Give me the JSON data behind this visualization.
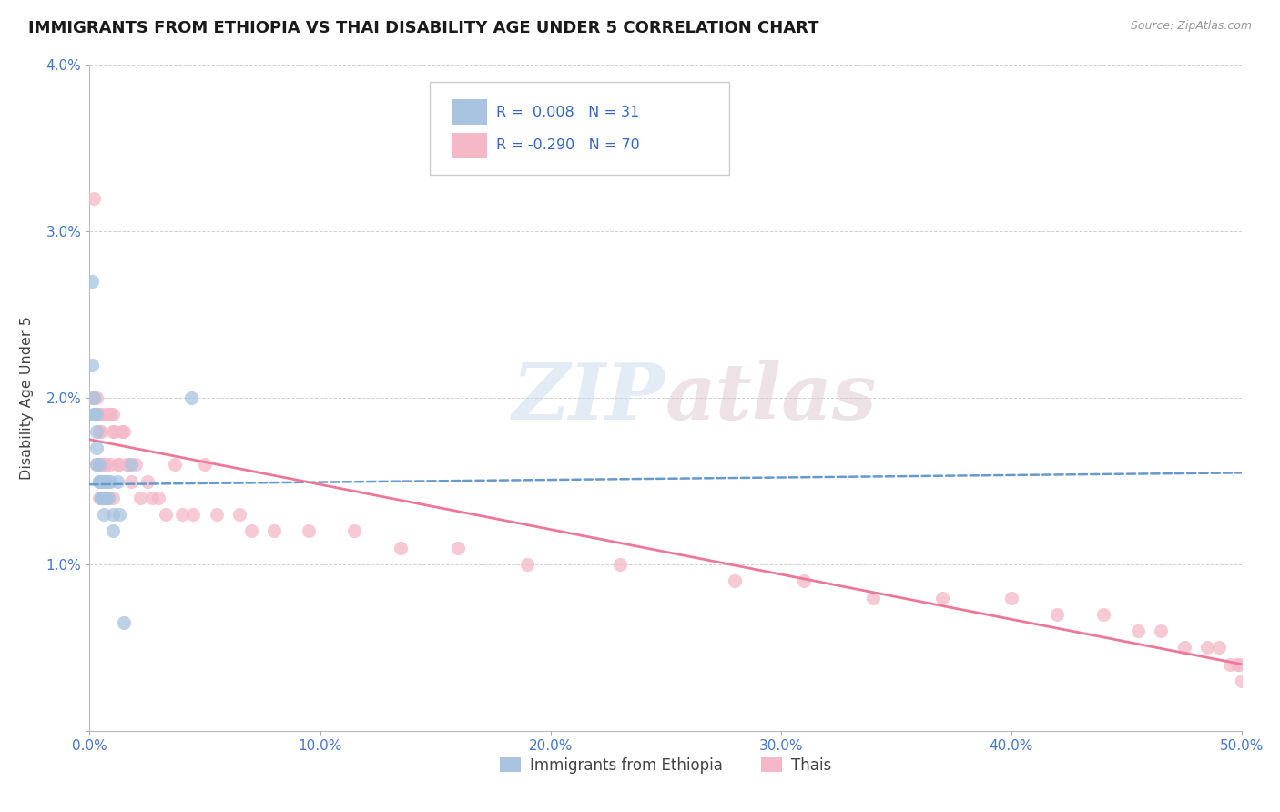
{
  "title": "IMMIGRANTS FROM ETHIOPIA VS THAI DISABILITY AGE UNDER 5 CORRELATION CHART",
  "source_text": "Source: ZipAtlas.com",
  "ylabel": "Disability Age Under 5",
  "xlim": [
    0.0,
    0.5
  ],
  "ylim": [
    0.0,
    0.04
  ],
  "xticks": [
    0.0,
    0.1,
    0.2,
    0.3,
    0.4,
    0.5
  ],
  "xtick_labels": [
    "0.0%",
    "10.0%",
    "20.0%",
    "30.0%",
    "40.0%",
    "50.0%"
  ],
  "yticks": [
    0.0,
    0.01,
    0.02,
    0.03,
    0.04
  ],
  "ytick_labels": [
    "",
    "1.0%",
    "2.0%",
    "3.0%",
    "4.0%"
  ],
  "legend_r_ethiopia": "0.008",
  "legend_n_ethiopia": "31",
  "legend_r_thai": "-0.290",
  "legend_n_thai": "70",
  "color_ethiopia": "#a8c4e0",
  "color_thai": "#f4b8c8",
  "color_ethiopia_line": "#6699cc",
  "color_thai_line": "#ee7799",
  "watermark_color": "#d0dff0",
  "ethiopia_x": [
    0.001,
    0.001,
    0.002,
    0.002,
    0.002,
    0.003,
    0.003,
    0.003,
    0.003,
    0.004,
    0.004,
    0.004,
    0.005,
    0.005,
    0.005,
    0.005,
    0.006,
    0.006,
    0.006,
    0.007,
    0.007,
    0.008,
    0.008,
    0.009,
    0.01,
    0.01,
    0.012,
    0.013,
    0.015,
    0.018,
    0.044
  ],
  "ethiopia_y": [
    0.027,
    0.022,
    0.02,
    0.019,
    0.019,
    0.019,
    0.018,
    0.017,
    0.016,
    0.016,
    0.015,
    0.015,
    0.015,
    0.015,
    0.014,
    0.014,
    0.015,
    0.014,
    0.013,
    0.015,
    0.014,
    0.015,
    0.014,
    0.015,
    0.013,
    0.012,
    0.015,
    0.013,
    0.0065,
    0.016,
    0.02
  ],
  "thai_x": [
    0.001,
    0.002,
    0.002,
    0.003,
    0.003,
    0.003,
    0.004,
    0.004,
    0.004,
    0.005,
    0.005,
    0.005,
    0.005,
    0.006,
    0.006,
    0.006,
    0.007,
    0.007,
    0.007,
    0.008,
    0.008,
    0.009,
    0.009,
    0.01,
    0.01,
    0.01,
    0.011,
    0.012,
    0.013,
    0.014,
    0.015,
    0.016,
    0.017,
    0.018,
    0.02,
    0.022,
    0.025,
    0.027,
    0.03,
    0.033,
    0.037,
    0.04,
    0.045,
    0.05,
    0.055,
    0.065,
    0.07,
    0.08,
    0.095,
    0.115,
    0.135,
    0.16,
    0.19,
    0.23,
    0.28,
    0.31,
    0.34,
    0.37,
    0.4,
    0.42,
    0.44,
    0.455,
    0.465,
    0.475,
    0.485,
    0.49,
    0.495,
    0.498,
    0.499,
    0.5
  ],
  "thai_y": [
    0.02,
    0.032,
    0.02,
    0.02,
    0.019,
    0.016,
    0.019,
    0.018,
    0.014,
    0.019,
    0.018,
    0.016,
    0.014,
    0.016,
    0.016,
    0.014,
    0.019,
    0.016,
    0.014,
    0.019,
    0.014,
    0.019,
    0.016,
    0.019,
    0.018,
    0.014,
    0.018,
    0.016,
    0.016,
    0.018,
    0.018,
    0.016,
    0.016,
    0.015,
    0.016,
    0.014,
    0.015,
    0.014,
    0.014,
    0.013,
    0.016,
    0.013,
    0.013,
    0.016,
    0.013,
    0.013,
    0.012,
    0.012,
    0.012,
    0.012,
    0.011,
    0.011,
    0.01,
    0.01,
    0.009,
    0.009,
    0.008,
    0.008,
    0.008,
    0.007,
    0.007,
    0.006,
    0.006,
    0.005,
    0.005,
    0.005,
    0.004,
    0.004,
    0.004,
    0.003
  ],
  "eth_line_x": [
    0.0,
    0.5
  ],
  "eth_line_y": [
    0.0148,
    0.0155
  ],
  "thai_line_x": [
    0.0,
    0.5
  ],
  "thai_line_y": [
    0.0175,
    0.004
  ]
}
